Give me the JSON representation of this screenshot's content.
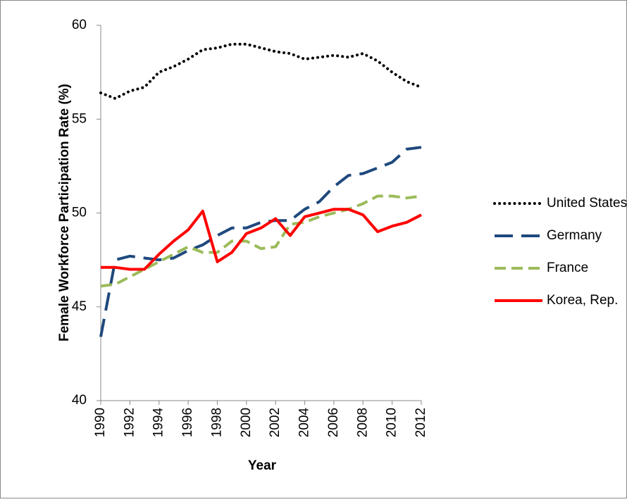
{
  "chart_data": {
    "type": "line",
    "x_label": "Year",
    "y_label": "Female Workforce Participation Rate (%)",
    "x": [
      1990,
      1991,
      1992,
      1993,
      1994,
      1995,
      1996,
      1997,
      1998,
      1999,
      2000,
      2001,
      2002,
      2003,
      2004,
      2005,
      2006,
      2007,
      2008,
      2009,
      2010,
      2011,
      2012
    ],
    "series": [
      {
        "name": "United States",
        "color": "#000000",
        "dash": "dotted",
        "values": [
          56.4,
          56.1,
          56.5,
          56.7,
          57.5,
          57.8,
          58.2,
          58.7,
          58.8,
          59.0,
          59.0,
          58.8,
          58.6,
          58.5,
          58.2,
          58.3,
          58.4,
          58.3,
          58.5,
          58.1,
          57.5,
          57.0,
          56.7
        ]
      },
      {
        "name": "Germany",
        "color": "#1f497d",
        "dash": "long-dash",
        "values": [
          43.4,
          47.5,
          47.7,
          47.6,
          47.5,
          47.6,
          48.0,
          48.3,
          48.8,
          49.2,
          49.2,
          49.5,
          49.6,
          49.6,
          50.2,
          50.6,
          51.4,
          52.0,
          52.1,
          52.4,
          52.7,
          53.4,
          53.5
        ]
      },
      {
        "name": "France",
        "color": "#9bbb59",
        "dash": "dash",
        "values": [
          46.1,
          46.2,
          46.6,
          47.0,
          47.4,
          47.8,
          48.2,
          47.9,
          47.9,
          48.5,
          48.5,
          48.1,
          48.2,
          49.4,
          49.5,
          49.8,
          50.0,
          50.2,
          50.5,
          50.9,
          50.9,
          50.8,
          50.9
        ]
      },
      {
        "name": "Korea, Rep.",
        "color": "#ff0000",
        "dash": "solid",
        "values": [
          47.1,
          47.1,
          47.0,
          47.0,
          47.8,
          48.5,
          49.1,
          50.1,
          47.4,
          47.9,
          48.9,
          49.2,
          49.7,
          48.8,
          49.8,
          50.0,
          50.2,
          50.2,
          49.9,
          49.0,
          49.3,
          49.5,
          49.9
        ]
      }
    ],
    "xlim": [
      1990,
      2012
    ],
    "xticks": [
      1990,
      1992,
      1994,
      1996,
      1998,
      2000,
      2002,
      2004,
      2006,
      2008,
      2010,
      2012
    ],
    "ylim": [
      40,
      60
    ],
    "yticks": [
      40,
      45,
      50,
      55,
      60
    ],
    "legend": "right"
  }
}
